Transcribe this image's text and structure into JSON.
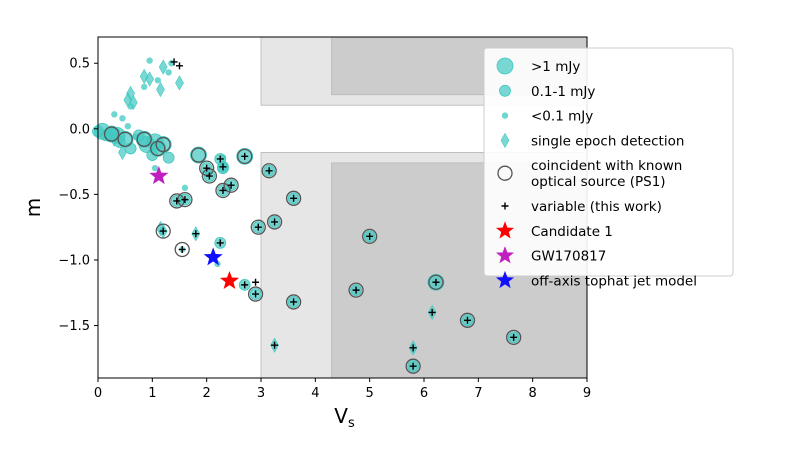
{
  "chart_data": {
    "type": "scatter",
    "title": "",
    "xlabel": "V",
    "xlabel_sub": "s",
    "ylabel": "m",
    "xlim": [
      0,
      9
    ],
    "ylim": [
      -1.9,
      0.7
    ],
    "xticks": [
      0,
      1,
      2,
      3,
      4,
      5,
      6,
      7,
      8,
      9
    ],
    "yticks": [
      0.5,
      0.0,
      -0.5,
      -1.0,
      -1.5
    ],
    "ytick_labels": [
      "0.5",
      "0.0",
      "−0.5",
      "−1.0",
      "−1.5"
    ],
    "grid": false,
    "legend_position": "upper-right",
    "shaded_regions": [
      {
        "name": "light-region",
        "color": "#e6e6e6",
        "polygons": [
          [
            [
              3.0,
              0.7
            ],
            [
              9.0,
              0.7
            ],
            [
              9.0,
              0.18
            ],
            [
              3.0,
              0.18
            ]
          ],
          [
            [
              3.0,
              -0.18
            ],
            [
              9.0,
              -0.18
            ],
            [
              9.0,
              -1.9
            ],
            [
              3.0,
              -1.9
            ]
          ]
        ]
      },
      {
        "name": "dark-region",
        "color": "#cccccc",
        "polygons": [
          [
            [
              4.3,
              0.7
            ],
            [
              9.0,
              0.7
            ],
            [
              9.0,
              0.26
            ],
            [
              4.3,
              0.26
            ]
          ],
          [
            [
              4.3,
              -0.26
            ],
            [
              9.0,
              -0.26
            ],
            [
              9.0,
              -1.9
            ],
            [
              4.3,
              -1.9
            ]
          ]
        ]
      }
    ],
    "series": [
      {
        "name": ">1 mJy",
        "marker": "large-circle",
        "color": "#40c8c0",
        "points": [
          [
            0.08,
            -0.02
          ],
          [
            0.25,
            -0.04
          ],
          [
            0.35,
            -0.05
          ],
          [
            0.5,
            -0.08
          ],
          [
            0.85,
            -0.08
          ],
          [
            0.9,
            -0.12
          ],
          [
            1.05,
            -0.1
          ],
          [
            1.1,
            -0.15
          ],
          [
            1.2,
            -0.12
          ],
          [
            1.85,
            -0.2
          ],
          [
            2.7,
            -0.21
          ],
          [
            6.22,
            -1.17
          ]
        ]
      },
      {
        "name": "0.1-1 mJy",
        "marker": "medium-circle",
        "color": "#40c8c0",
        "points": [
          [
            0.0,
            -0.02
          ],
          [
            0.15,
            -0.05
          ],
          [
            0.3,
            -0.03
          ],
          [
            0.4,
            -0.1
          ],
          [
            0.6,
            -0.15
          ],
          [
            0.75,
            -0.05
          ],
          [
            1.0,
            -0.2
          ],
          [
            1.3,
            -0.22
          ],
          [
            1.45,
            -0.55
          ],
          [
            1.6,
            -0.54
          ],
          [
            2.0,
            -0.3
          ],
          [
            2.05,
            -0.36
          ],
          [
            2.25,
            -0.23
          ],
          [
            2.3,
            -0.29
          ],
          [
            2.3,
            -0.47
          ],
          [
            2.45,
            -0.43
          ],
          [
            2.9,
            -1.26
          ],
          [
            2.95,
            -0.75
          ],
          [
            3.15,
            -0.32
          ],
          [
            3.25,
            -0.71
          ],
          [
            3.6,
            -0.53
          ],
          [
            3.6,
            -1.32
          ],
          [
            4.75,
            -1.23
          ],
          [
            5.0,
            -0.82
          ],
          [
            5.8,
            -1.81
          ],
          [
            6.8,
            -1.46
          ],
          [
            7.65,
            -1.59
          ],
          [
            2.7,
            -1.19
          ],
          [
            2.25,
            -0.87
          ],
          [
            2.3,
            -0.3
          ]
        ]
      },
      {
        "name": "<0.1 mJy",
        "marker": "small-circle",
        "color": "#40c8c0",
        "points": [
          [
            0.45,
            0.08
          ],
          [
            0.6,
            0.17
          ],
          [
            0.85,
            0.32
          ],
          [
            0.95,
            0.52
          ],
          [
            1.35,
            0.5
          ],
          [
            1.3,
            0.43
          ],
          [
            1.1,
            0.37
          ],
          [
            0.3,
            0.11
          ],
          [
            0.55,
            0.02
          ],
          [
            0.7,
            -0.06
          ],
          [
            1.6,
            -0.45
          ],
          [
            1.05,
            -0.3
          ],
          [
            1.55,
            -0.92
          ],
          [
            2.2,
            -1.03
          ],
          [
            2.3,
            -0.22
          ]
        ]
      },
      {
        "name": "single epoch detection",
        "marker": "diamond",
        "color": "#40c8c0",
        "points": [
          [
            0.3,
            -0.08
          ],
          [
            0.45,
            -0.18
          ],
          [
            0.55,
            0.22
          ],
          [
            0.65,
            0.2
          ],
          [
            0.85,
            0.4
          ],
          [
            0.95,
            0.38
          ],
          [
            1.15,
            0.3
          ],
          [
            1.2,
            0.47
          ],
          [
            0.6,
            0.27
          ],
          [
            1.5,
            0.35
          ],
          [
            1.15,
            -0.76
          ],
          [
            1.8,
            -0.8
          ],
          [
            3.25,
            -1.65
          ],
          [
            5.8,
            -1.67
          ],
          [
            6.15,
            -1.4
          ],
          [
            1.2,
            -0.78
          ]
        ]
      },
      {
        "name": "coincident with known optical source (PS1)",
        "marker": "ring",
        "color": "#555555",
        "points": [
          [
            0.25,
            -0.04
          ],
          [
            0.5,
            -0.08
          ],
          [
            0.85,
            -0.08
          ],
          [
            1.1,
            -0.15
          ],
          [
            1.2,
            -0.12
          ],
          [
            1.85,
            -0.2
          ],
          [
            2.7,
            -0.21
          ],
          [
            6.22,
            -1.17
          ],
          [
            2.9,
            -1.26
          ],
          [
            3.15,
            -0.32
          ],
          [
            3.6,
            -1.32
          ],
          [
            4.75,
            -1.23
          ],
          [
            5.0,
            -0.82
          ],
          [
            5.8,
            -1.81
          ],
          [
            6.8,
            -1.46
          ],
          [
            7.65,
            -1.59
          ],
          [
            3.6,
            -0.53
          ],
          [
            3.25,
            -0.71
          ],
          [
            2.95,
            -0.75
          ],
          [
            1.45,
            -0.55
          ],
          [
            1.6,
            -0.54
          ],
          [
            2.3,
            -0.47
          ],
          [
            2.45,
            -0.43
          ],
          [
            2.0,
            -0.3
          ],
          [
            2.05,
            -0.36
          ],
          [
            1.2,
            -0.78
          ],
          [
            1.55,
            -0.92
          ]
        ]
      },
      {
        "name": "variable (this work)",
        "marker": "plus",
        "color": "#000000",
        "points": [
          [
            1.4,
            0.51
          ],
          [
            1.5,
            0.48
          ],
          [
            2.7,
            -0.21
          ],
          [
            3.15,
            -0.32
          ],
          [
            3.6,
            -0.53
          ],
          [
            2.95,
            -0.75
          ],
          [
            3.25,
            -0.71
          ],
          [
            5.0,
            -0.82
          ],
          [
            6.22,
            -1.17
          ],
          [
            4.75,
            -1.23
          ],
          [
            2.9,
            -1.17
          ],
          [
            2.9,
            -1.26
          ],
          [
            2.7,
            -1.19
          ],
          [
            3.6,
            -1.32
          ],
          [
            5.8,
            -1.81
          ],
          [
            5.8,
            -1.67
          ],
          [
            6.15,
            -1.4
          ],
          [
            6.8,
            -1.46
          ],
          [
            7.65,
            -1.59
          ],
          [
            3.25,
            -1.65
          ],
          [
            2.25,
            -0.87
          ],
          [
            1.8,
            -0.8
          ],
          [
            1.55,
            -0.92
          ],
          [
            1.45,
            -0.55
          ],
          [
            1.6,
            -0.54
          ],
          [
            2.0,
            -0.3
          ],
          [
            2.05,
            -0.36
          ],
          [
            2.3,
            -0.47
          ],
          [
            2.45,
            -0.43
          ],
          [
            2.25,
            -0.23
          ],
          [
            2.3,
            -0.29
          ],
          [
            1.2,
            -0.78
          ]
        ]
      },
      {
        "name": "Candidate 1",
        "marker": "star",
        "color": "#ff0000",
        "points": [
          [
            2.42,
            -1.16
          ]
        ]
      },
      {
        "name": "GW170817",
        "marker": "star",
        "color": "#c020c0",
        "points": [
          [
            1.12,
            -0.36
          ]
        ]
      },
      {
        "name": "off-axis tophat jet model",
        "marker": "star",
        "color": "#1010ff",
        "points": [
          [
            2.12,
            -0.98
          ]
        ]
      }
    ],
    "legend": [
      {
        "marker": "large-circle",
        "color": "#40c8c0",
        "lines": [
          ">1 mJy"
        ]
      },
      {
        "marker": "medium-circle",
        "color": "#40c8c0",
        "lines": [
          "0.1-1 mJy"
        ]
      },
      {
        "marker": "small-circle",
        "color": "#40c8c0",
        "lines": [
          "<0.1 mJy"
        ]
      },
      {
        "marker": "diamond",
        "color": "#40c8c0",
        "lines": [
          "single epoch detection"
        ]
      },
      {
        "marker": "ring",
        "color": "#555555",
        "lines": [
          "coincident with known",
          "optical source (PS1)"
        ]
      },
      {
        "marker": "plus",
        "color": "#000000",
        "lines": [
          "variable (this work)"
        ]
      },
      {
        "marker": "star",
        "color": "#ff0000",
        "lines": [
          "Candidate 1"
        ]
      },
      {
        "marker": "star",
        "color": "#c020c0",
        "lines": [
          "GW170817"
        ]
      },
      {
        "marker": "star",
        "color": "#1010ff",
        "lines": [
          "off-axis tophat jet model"
        ]
      }
    ]
  }
}
